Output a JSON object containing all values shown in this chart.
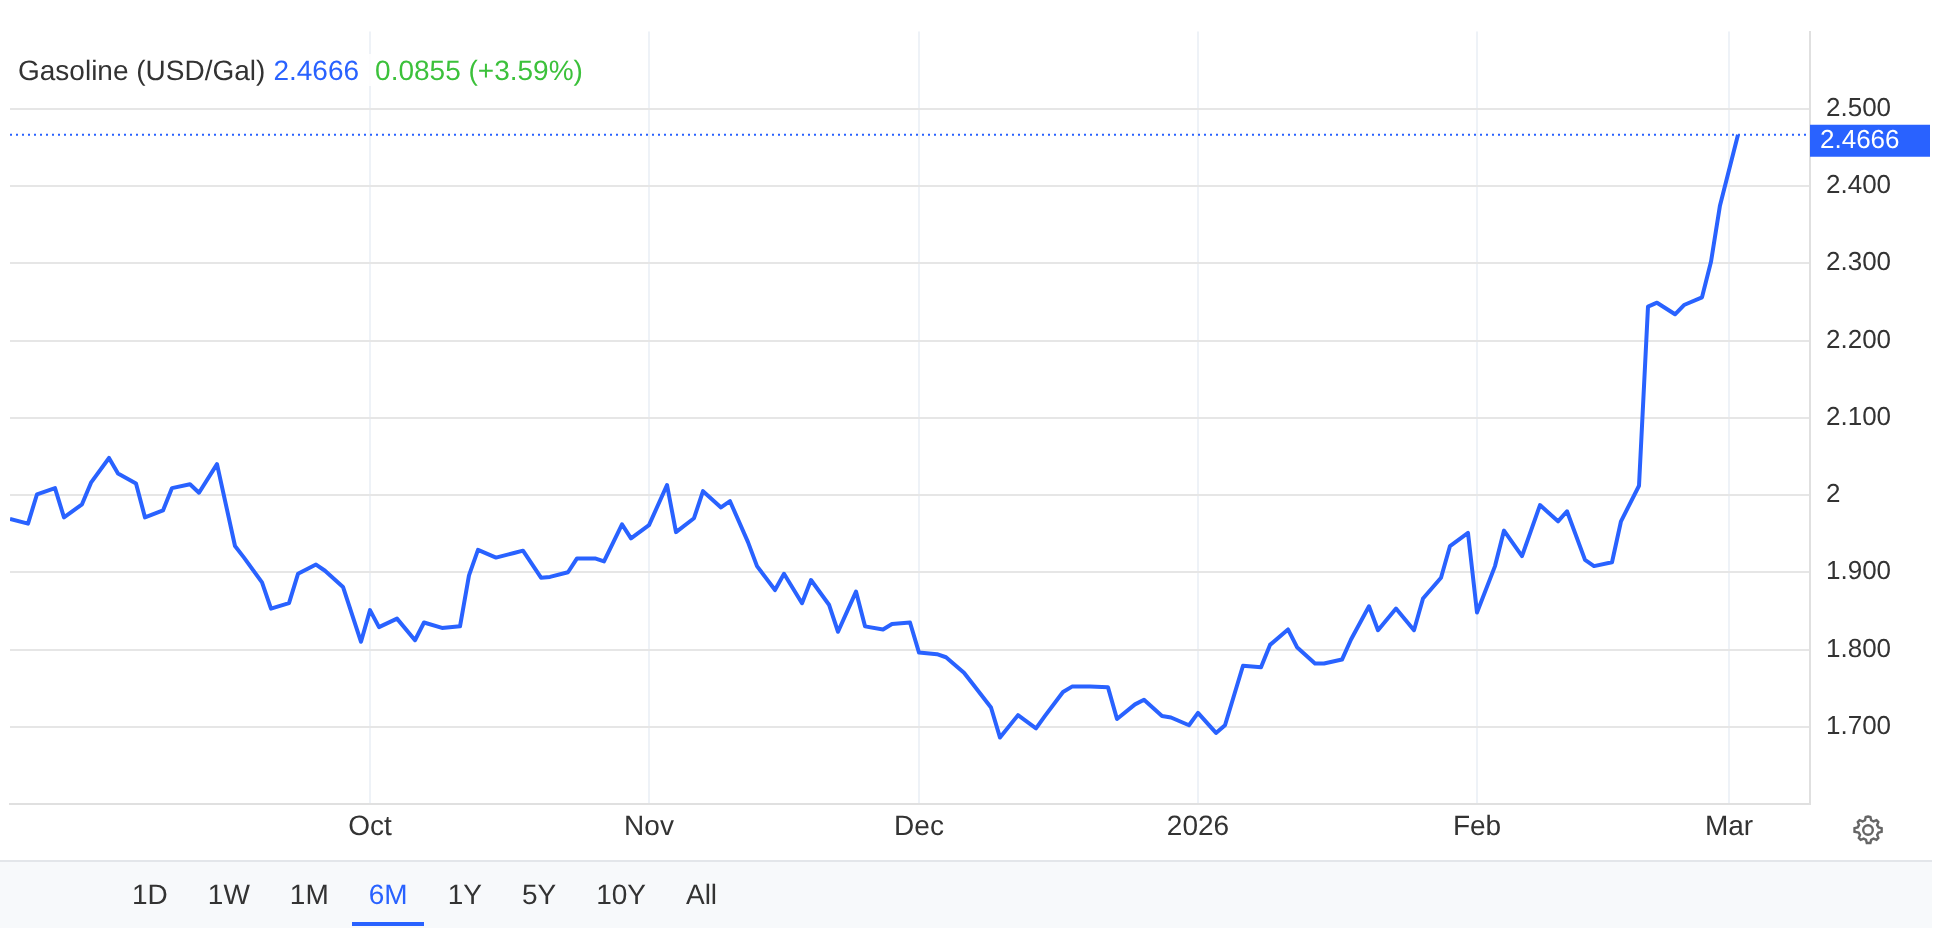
{
  "chart_data": {
    "type": "line",
    "title": "Gasoline (USD/Gal)",
    "annotations": [
      "2.4666",
      "0.0855 (+3.59%)",
      "1D",
      "1W",
      "1M",
      "6M",
      "1Y",
      "5Y",
      "10Y",
      "All"
    ],
    "x": [
      "2025-08-22",
      "2025-08-24",
      "2025-08-25",
      "2025-08-27",
      "2025-08-28",
      "2025-08-30",
      "2025-08-31",
      "2025-09-02",
      "2025-09-03",
      "2025-09-05",
      "2025-09-06",
      "2025-09-08",
      "2025-09-09",
      "2025-09-11",
      "2025-09-12",
      "2025-09-14",
      "2025-09-16",
      "2025-09-17",
      "2025-09-19",
      "2025-09-20",
      "2025-09-22",
      "2025-09-23",
      "2025-09-25",
      "2025-09-26",
      "2025-09-28",
      "2025-09-30",
      "2025-10-01",
      "2025-10-02",
      "2025-10-04",
      "2025-10-06",
      "2025-10-07",
      "2025-10-09",
      "2025-10-11",
      "2025-10-12",
      "2025-10-13",
      "2025-10-15",
      "2025-10-17",
      "2025-10-18",
      "2025-10-20",
      "2025-10-21",
      "2025-10-23",
      "2025-10-24",
      "2025-10-26",
      "2025-10-27",
      "2025-10-29",
      "2025-10-30",
      "2025-11-01",
      "2025-11-03",
      "2025-11-04",
      "2025-11-06",
      "2025-11-07",
      "2025-11-09",
      "2025-11-10",
      "2025-11-12",
      "2025-11-13",
      "2025-11-15",
      "2025-11-16",
      "2025-11-18",
      "2025-11-19",
      "2025-11-21",
      "2025-11-22",
      "2025-11-24",
      "2025-11-25",
      "2025-11-27",
      "2025-11-28",
      "2025-11-30",
      "2025-12-01",
      "2025-12-03",
      "2025-12-04",
      "2025-12-06",
      "2025-12-07",
      "2025-12-09",
      "2025-12-10",
      "2025-12-12",
      "2025-12-14",
      "2025-12-15",
      "2025-12-17",
      "2025-12-18",
      "2025-12-20",
      "2025-12-22",
      "2025-12-23",
      "2025-12-25",
      "2025-12-26",
      "2025-12-28",
      "2025-12-29",
      "2025-12-31",
      "2026-01-01",
      "2026-01-03",
      "2026-01-04",
      "2026-01-06",
      "2026-01-08",
      "2026-01-09",
      "2026-01-11",
      "2026-01-12",
      "2026-01-14",
      "2026-01-15",
      "2026-01-17",
      "2026-01-18",
      "2026-01-20",
      "2026-01-21",
      "2026-01-23",
      "2026-01-25",
      "2026-01-26",
      "2026-01-28",
      "2026-01-29",
      "2026-01-31",
      "2026-02-01",
      "2026-02-03",
      "2026-02-04",
      "2026-02-06",
      "2026-02-07",
      "2026-02-08",
      "2026-02-10",
      "2026-02-11",
      "2026-02-13",
      "2026-02-14",
      "2026-02-16",
      "2026-02-17",
      "2026-02-19",
      "2026-02-20",
      "2026-02-21",
      "2026-02-23",
      "2026-02-24",
      "2026-02-26",
      "2026-02-27",
      "2026-02-28",
      "2026-03-02"
    ],
    "series": [
      {
        "color": "#2962ff",
        "values": [
          1.969,
          1.963,
          2.001,
          2.009,
          1.971,
          1.988,
          2.016,
          2.048,
          2.028,
          2.015,
          1.971,
          1.98,
          2.009,
          2.014,
          2.003,
          2.04,
          1.934,
          1.919,
          1.887,
          1.853,
          1.86,
          1.898,
          1.91,
          1.902,
          1.881,
          1.81,
          1.851,
          1.829,
          1.84,
          1.812,
          1.835,
          1.828,
          1.83,
          1.896,
          1.929,
          1.919,
          1.925,
          1.928,
          1.893,
          1.894,
          1.9,
          1.918,
          1.918,
          1.914,
          1.962,
          1.944,
          1.961,
          2.013,
          1.952,
          1.97,
          2.005,
          1.984,
          1.992,
          1.939,
          1.908,
          1.877,
          1.898,
          1.86,
          1.89,
          1.858,
          1.823,
          1.875,
          1.83,
          1.826,
          1.833,
          1.835,
          1.796,
          1.794,
          1.79,
          1.77,
          1.755,
          1.725,
          1.686,
          1.715,
          1.698,
          1.714,
          1.745,
          1.752,
          1.752,
          1.751,
          1.71,
          1.729,
          1.735,
          1.714,
          1.712,
          1.702,
          1.718,
          1.692,
          1.702,
          1.779,
          1.777,
          1.806,
          1.826,
          1.803,
          1.782,
          1.782,
          1.787,
          1.813,
          1.856,
          1.825,
          1.853,
          1.825,
          1.866,
          1.893,
          1.934,
          1.951,
          1.848,
          1.908,
          1.954,
          1.921,
          1.954,
          1.987,
          1.966,
          1.979,
          1.916,
          1.908,
          1.913,
          1.966,
          2.012,
          2.244,
          2.249,
          2.234,
          2.246,
          2.256,
          2.302,
          2.375,
          2.4666
        ]
      }
    ],
    "xlim": [
      "2025-08-22",
      "2026-03-10"
    ],
    "xticks": [
      {
        "value": "2025-10-01",
        "label": "Oct"
      },
      {
        "value": "2025-11-01",
        "label": "Nov"
      },
      {
        "value": "2025-12-01",
        "label": "Dec"
      },
      {
        "value": "2026-01-01",
        "label": "2026"
      },
      {
        "value": "2026-02-01",
        "label": "Feb"
      },
      {
        "value": "2026-03-01",
        "label": "Mar"
      }
    ],
    "ylim": [
      1.6,
      2.6
    ],
    "yticks": [
      {
        "value": 1.7,
        "label": "1.700"
      },
      {
        "value": 1.8,
        "label": "1.800"
      },
      {
        "value": 1.9,
        "label": "1.900"
      },
      {
        "value": 2,
        "label": "2"
      },
      {
        "value": 2.1,
        "label": "2.100"
      },
      {
        "value": 2.2,
        "label": "2.200"
      },
      {
        "value": 2.3,
        "label": "2.300"
      },
      {
        "value": 2.4,
        "label": "2.400"
      },
      {
        "value": 2.5,
        "label": "2.500"
      }
    ],
    "ref_lines": [
      {
        "axis": "y",
        "value": 2.4666,
        "label": "2.4666",
        "color": "#2962ff",
        "line_style": "dotted"
      }
    ],
    "grid": true,
    "legend": false,
    "marker": "none",
    "line_style": "solid"
  }
}
